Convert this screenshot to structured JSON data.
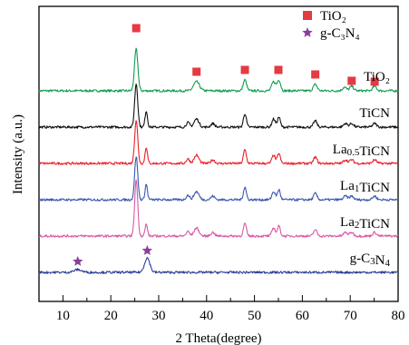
{
  "chart_data": {
    "type": "line",
    "title": "",
    "xlabel": "2 Theta(degree)",
    "ylabel": "Intensity (a.u.)",
    "xlim": [
      5,
      80
    ],
    "x_ticks": [
      10,
      20,
      30,
      40,
      50,
      60,
      70,
      80
    ],
    "x_tick_labels": [
      "10",
      "20",
      "30",
      "40",
      "50",
      "60",
      "70",
      "80"
    ],
    "y_ticks_shown": false,
    "grid": false,
    "legend": {
      "placement": "top-right",
      "entries": [
        {
          "label": "TiO₂",
          "marker": "square",
          "color": "#e53a43"
        },
        {
          "label": "g-C₃N₄",
          "marker": "star",
          "color": "#8a3f98"
        }
      ]
    },
    "series": [
      {
        "name": "TiO₂",
        "color": "#0f9d4f",
        "level": 6,
        "peaks": [
          [
            25.3,
            46,
            0.35
          ],
          [
            37.9,
            10,
            0.6
          ],
          [
            48.0,
            12,
            0.35
          ],
          [
            54.0,
            10,
            0.4
          ],
          [
            55.1,
            12,
            0.35
          ],
          [
            62.7,
            7,
            0.4
          ],
          [
            68.8,
            4,
            0.4
          ],
          [
            70.3,
            5,
            0.4
          ],
          [
            75.1,
            5,
            0.4
          ]
        ]
      },
      {
        "name": "TiCN",
        "color": "#111111",
        "level": 5,
        "peaks": [
          [
            25.3,
            48,
            0.32
          ],
          [
            27.4,
            18,
            0.25
          ],
          [
            36.1,
            5,
            0.35
          ],
          [
            37.9,
            9,
            0.5
          ],
          [
            41.3,
            4,
            0.4
          ],
          [
            48.0,
            15,
            0.3
          ],
          [
            54.0,
            9,
            0.35
          ],
          [
            55.1,
            11,
            0.3
          ],
          [
            62.7,
            7,
            0.35
          ],
          [
            69.0,
            4,
            0.4
          ],
          [
            70.3,
            4,
            0.4
          ],
          [
            75.1,
            4,
            0.4
          ]
        ]
      },
      {
        "name": "La0.5TiCN",
        "color": "#e8222a",
        "level": 4,
        "peaks": [
          [
            25.3,
            48,
            0.32
          ],
          [
            27.4,
            18,
            0.25
          ],
          [
            36.1,
            5,
            0.35
          ],
          [
            37.9,
            9,
            0.5
          ],
          [
            41.3,
            4,
            0.4
          ],
          [
            48.0,
            15,
            0.3
          ],
          [
            54.0,
            9,
            0.35
          ],
          [
            55.1,
            11,
            0.3
          ],
          [
            62.7,
            7,
            0.35
          ],
          [
            69.0,
            4,
            0.4
          ],
          [
            70.3,
            4,
            0.4
          ],
          [
            75.1,
            4,
            0.4
          ]
        ]
      },
      {
        "name": "La1TiCN",
        "color": "#3a59b0",
        "level": 3,
        "peaks": [
          [
            25.3,
            48,
            0.32
          ],
          [
            27.4,
            17,
            0.25
          ],
          [
            36.1,
            5,
            0.35
          ],
          [
            37.9,
            9,
            0.5
          ],
          [
            41.3,
            4,
            0.4
          ],
          [
            48.0,
            14,
            0.3
          ],
          [
            54.0,
            9,
            0.35
          ],
          [
            55.1,
            11,
            0.3
          ],
          [
            62.7,
            7,
            0.35
          ],
          [
            69.0,
            4,
            0.4
          ],
          [
            70.3,
            4,
            0.4
          ],
          [
            75.1,
            4,
            0.4
          ]
        ]
      },
      {
        "name": "La2TiCN",
        "color": "#d85aa6",
        "level": 2,
        "peaks": [
          [
            25.3,
            62,
            0.32
          ],
          [
            27.4,
            13,
            0.25
          ],
          [
            36.1,
            5,
            0.35
          ],
          [
            37.9,
            9,
            0.5
          ],
          [
            41.3,
            4,
            0.4
          ],
          [
            48.0,
            14,
            0.3
          ],
          [
            54.0,
            9,
            0.35
          ],
          [
            55.1,
            11,
            0.3
          ],
          [
            62.7,
            7,
            0.35
          ],
          [
            69.0,
            4,
            0.4
          ],
          [
            70.3,
            4,
            0.4
          ],
          [
            75.1,
            4,
            0.4
          ]
        ]
      },
      {
        "name": "g-C3N4",
        "color": "#2c3e95",
        "level": 1,
        "peaks": [
          [
            13.1,
            3,
            0.8
          ],
          [
            27.6,
            16,
            0.55
          ]
        ]
      }
    ],
    "marker_annotations": [
      {
        "marker": "square",
        "color": "#e53a43",
        "x": [
          25.3,
          37.9,
          48.0,
          55.0,
          62.7,
          70.3,
          75.1
        ]
      },
      {
        "marker": "star",
        "color": "#8a3f98",
        "x": [
          13.1,
          27.6
        ]
      }
    ]
  }
}
